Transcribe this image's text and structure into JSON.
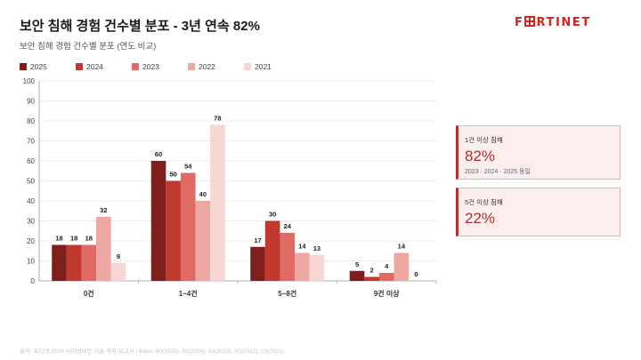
{
  "header": {
    "title": "보안 침해 경험 건수별 분포 - 3년 연속 82%",
    "subtitle": "보안 침해 경험 건수별 분포 (연도 비교)",
    "logo_text": "FORTINET"
  },
  "colors": {
    "2025": "#7e1f1d",
    "2024": "#c0392f",
    "2023": "#e06a66",
    "2022": "#eea8a4",
    "2021": "#f8d6d4",
    "accent": "#b0312f"
  },
  "chart_data": {
    "type": "bar",
    "title": "",
    "xlabel": "",
    "ylabel": "",
    "ylim": [
      0,
      100
    ],
    "yticks": [
      0,
      10,
      20,
      30,
      40,
      50,
      60,
      70,
      80,
      90,
      100
    ],
    "grid": true,
    "legend": "top-left",
    "categories": [
      "0건",
      "1~4건",
      "5~8건",
      "9건 이상"
    ],
    "series": [
      {
        "name": "2025",
        "values": [
          18,
          60,
          17,
          5
        ]
      },
      {
        "name": "2024",
        "values": [
          18,
          50,
          30,
          2
        ]
      },
      {
        "name": "2023",
        "values": [
          18,
          54,
          24,
          4
        ]
      },
      {
        "name": "2022",
        "values": [
          32,
          40,
          14,
          14
        ]
      },
      {
        "name": "2021",
        "values": [
          9,
          78,
          13,
          0
        ]
      }
    ]
  },
  "cards": [
    {
      "label": "1건 이상 침해",
      "value": "82%",
      "note": "2023 · 2024 · 2025 동일"
    },
    {
      "label": "5건 이상 침해",
      "value": "22%"
    }
  ],
  "footer": {
    "source": "출처: 포티넷 2026 사이버보안 기술 격차 보고서 / Base: 60(2025), 50(2024), 50(2023), 50(2022), 23(2021)"
  }
}
